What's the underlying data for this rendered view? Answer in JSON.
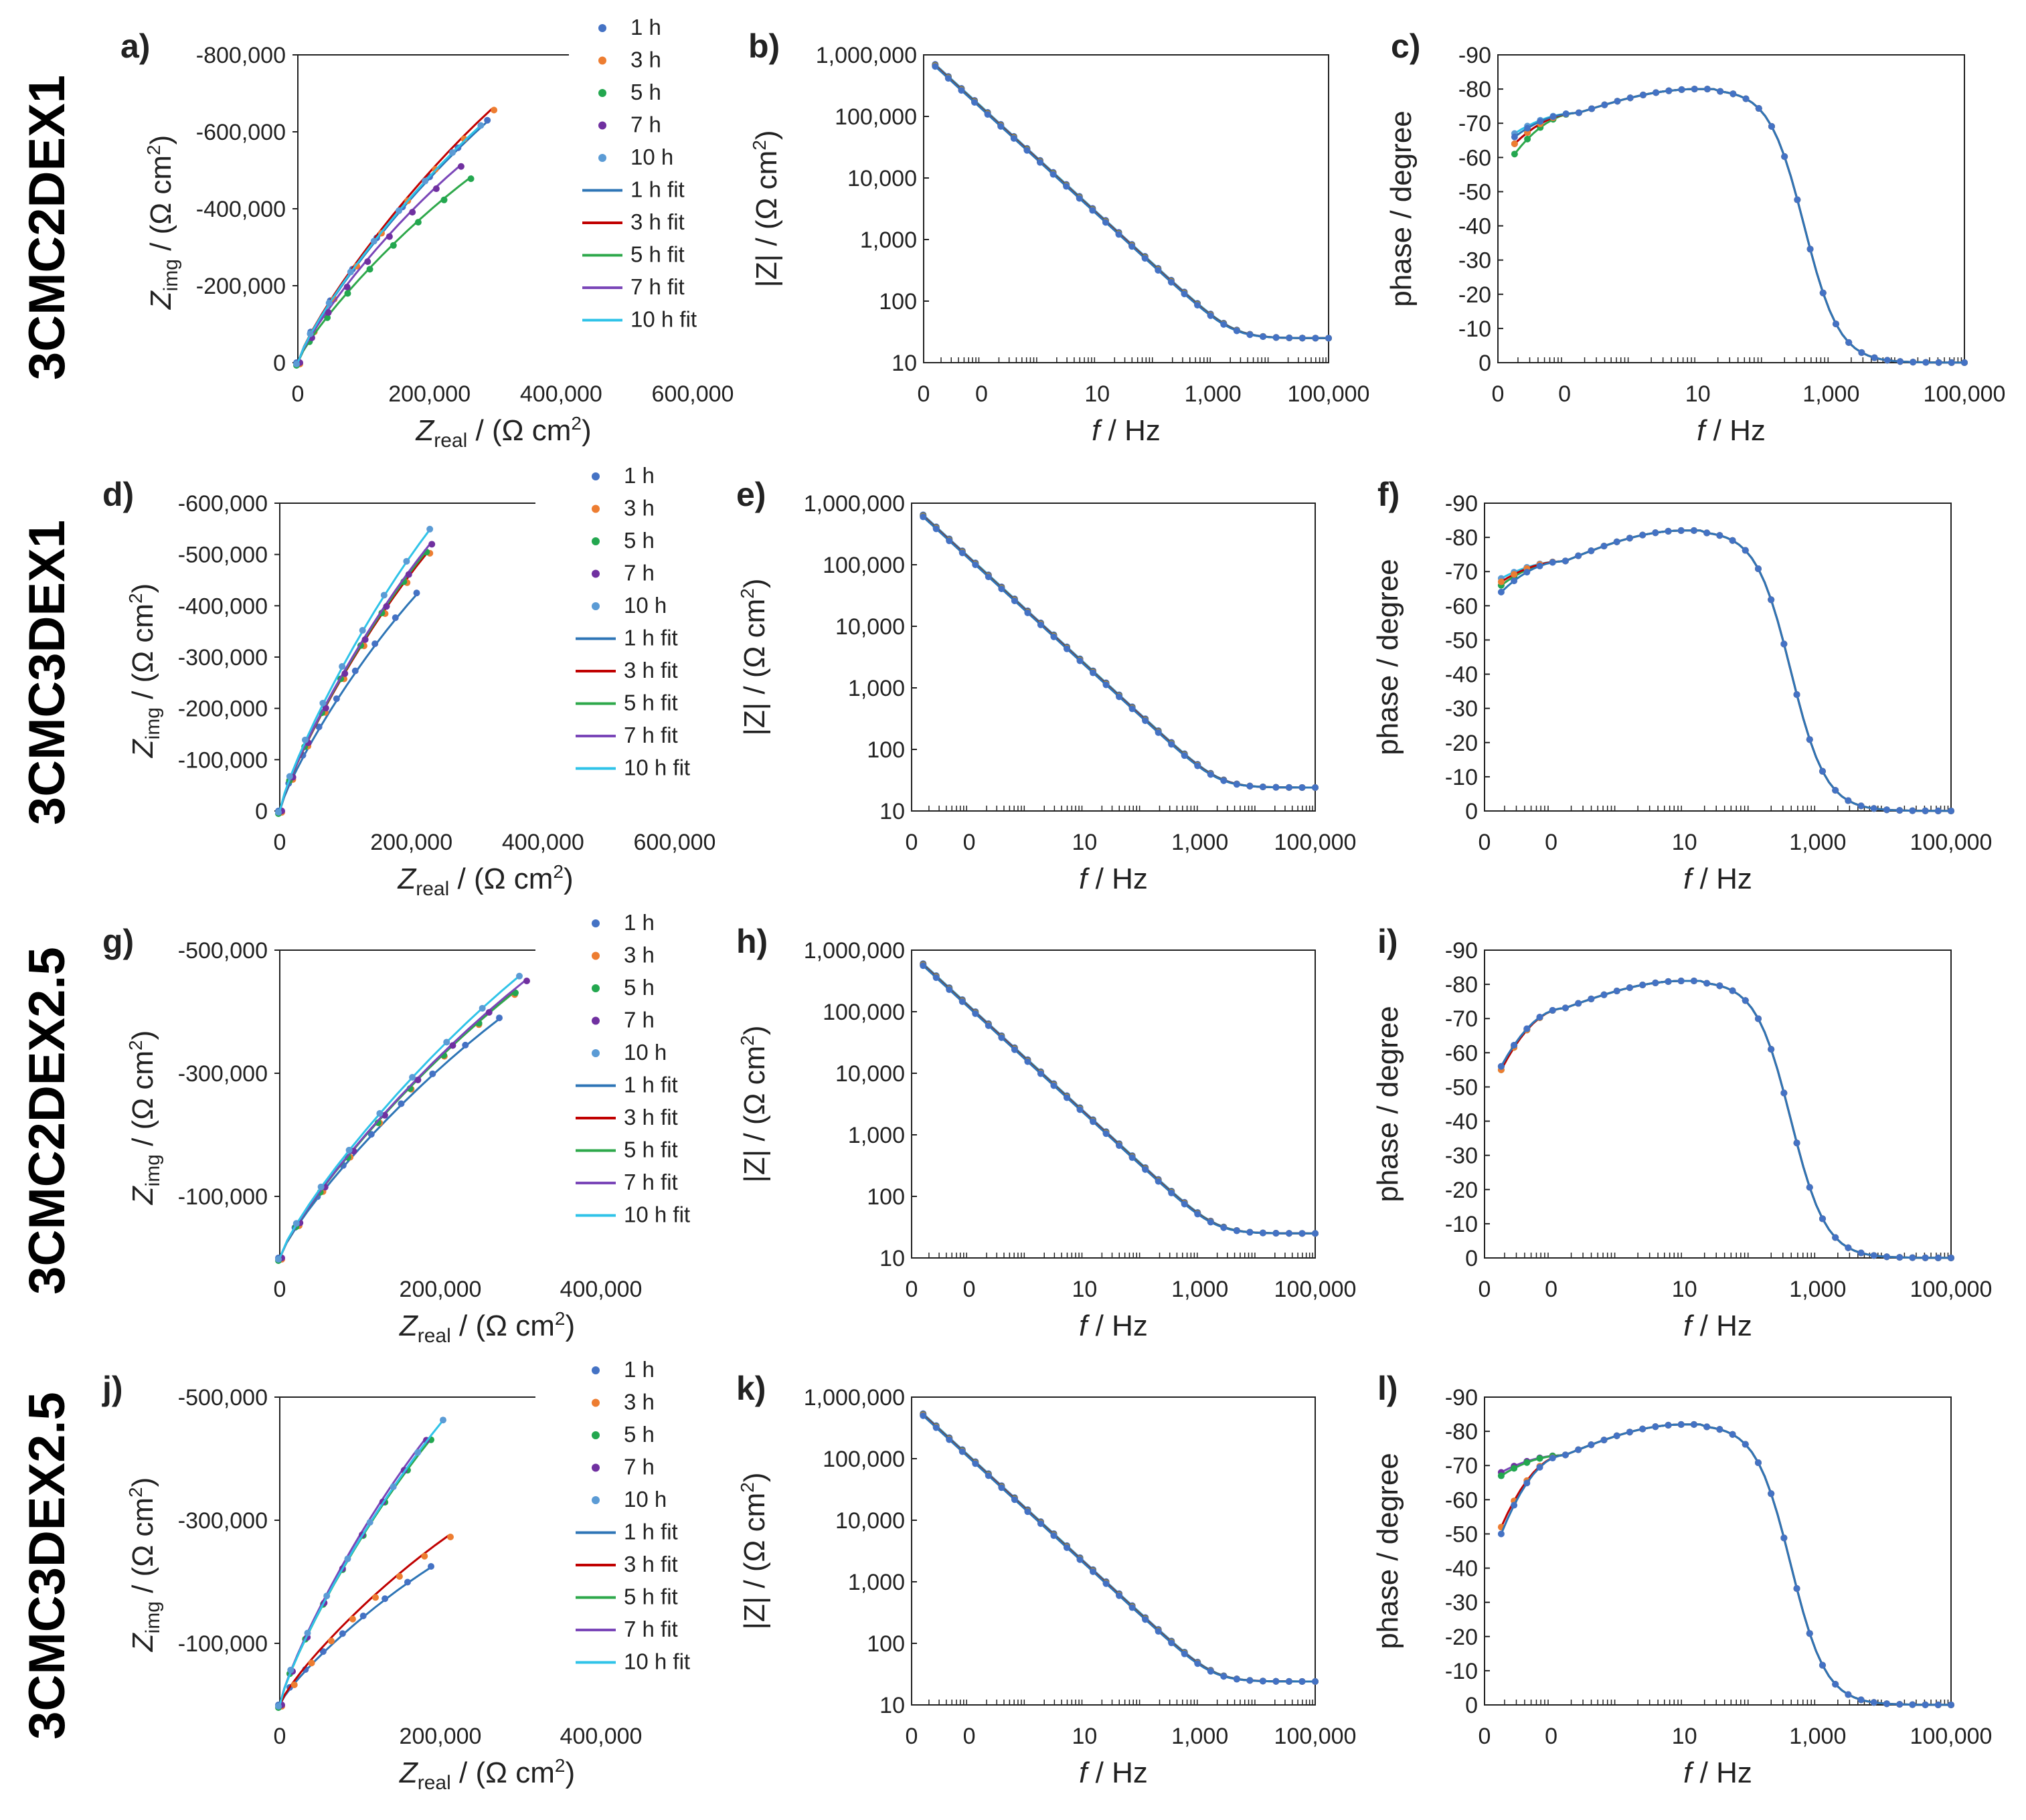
{
  "figure": {
    "row_labels": [
      "3CMC2DEX1",
      "3CMC3DEX1",
      "3CMC2DEX2.5",
      "3CMC3DEX2.5"
    ],
    "legend_items": [
      "1 h",
      "3 h",
      "5 h",
      "7 h",
      "10 h",
      "1 h fit",
      "3 h fit",
      "5 h fit",
      "7 h fit",
      "10 h fit"
    ],
    "colors": {
      "points": [
        "#4472c4",
        "#ed7d31",
        "#23a74f",
        "#7030a0",
        "#5b9bd5"
      ],
      "fits": [
        "#2e75b6",
        "#c00000",
        "#2ea84b",
        "#7a46b8",
        "#2fc3e8"
      ]
    }
  },
  "chart_data": [
    {
      "panel": "a)",
      "type": "scatter",
      "row": 0,
      "kind": "nyquist",
      "xlabel": "Z_real / (Ω cm²)",
      "ylabel": "Z_img / (Ω cm²)",
      "xlim": [
        0,
        600000
      ],
      "ylim": [
        0,
        800000
      ],
      "xticks": [
        "0",
        "200,000",
        "400,000",
        "600,000"
      ],
      "yticks": [
        "0",
        "-200,000",
        "-400,000",
        "-600,000",
        "-800,000"
      ],
      "series": [
        {
          "name": "1 h",
          "xmax": 290000,
          "ymax": 630000
        },
        {
          "name": "3 h",
          "xmax": 295000,
          "ymax": 660000
        },
        {
          "name": "5 h",
          "xmax": 265000,
          "ymax": 485000
        },
        {
          "name": "7 h",
          "xmax": 245000,
          "ymax": 510000
        },
        {
          "name": "10 h",
          "xmax": 280000,
          "ymax": 620000
        }
      ]
    },
    {
      "panel": "b)",
      "type": "scatter",
      "row": 0,
      "kind": "bode_mag",
      "xlabel": "f / Hz",
      "ylabel": "|Z| / (Ω cm²)",
      "ylim": [
        10,
        1000000
      ],
      "xticks": [
        "0",
        "0",
        "10",
        "1,000",
        "100,000"
      ],
      "yticks": [
        "10",
        "100",
        "1,000",
        "10,000",
        "100,000",
        "1,000,000"
      ],
      "low_freq_Z": 650000,
      "high_freq_Z": 25
    },
    {
      "panel": "c)",
      "type": "scatter",
      "row": 0,
      "kind": "bode_phase",
      "xlabel": "f / Hz",
      "ylabel": "phase / degree",
      "ylim": [
        0,
        -90
      ],
      "xticks": [
        "0",
        "0",
        "10",
        "1,000",
        "100,000"
      ],
      "yticks": [
        "0",
        "-10",
        "-20",
        "-30",
        "-40",
        "-50",
        "-60",
        "-70",
        "-80",
        "-90"
      ],
      "phase_start": [
        -66,
        -64,
        -61,
        -64,
        -67
      ],
      "phase_peak": -80
    },
    {
      "panel": "d)",
      "type": "scatter",
      "row": 1,
      "kind": "nyquist",
      "xlabel": "Z_real / (Ω cm²)",
      "ylabel": "Z_img / (Ω cm²)",
      "xlim": [
        0,
        600000
      ],
      "ylim": [
        0,
        600000
      ],
      "xticks": [
        "0",
        "200,000",
        "400,000",
        "600,000"
      ],
      "yticks": [
        "0",
        "-100,000",
        "-200,000",
        "-300,000",
        "-400,000",
        "-500,000",
        "-600,000"
      ],
      "series": [
        {
          "name": "1 h",
          "xmax": 210000,
          "ymax": 425000
        },
        {
          "name": "3 h",
          "xmax": 225000,
          "ymax": 505000
        },
        {
          "name": "5 h",
          "xmax": 225000,
          "ymax": 510000
        },
        {
          "name": "7 h",
          "xmax": 228000,
          "ymax": 520000
        },
        {
          "name": "10 h",
          "xmax": 230000,
          "ymax": 552000
        }
      ]
    },
    {
      "panel": "e)",
      "type": "scatter",
      "row": 1,
      "kind": "bode_mag",
      "xlabel": "f / Hz",
      "ylabel": "|Z| / (Ω cm²)",
      "ylim": [
        10,
        1000000
      ],
      "xticks": [
        "0",
        "0",
        "10",
        "1,000",
        "100,000"
      ],
      "yticks": [
        "10",
        "100",
        "1,000",
        "10,000",
        "100,000",
        "1,000,000"
      ],
      "low_freq_Z": 600000,
      "high_freq_Z": 24
    },
    {
      "panel": "f)",
      "type": "scatter",
      "row": 1,
      "kind": "bode_phase",
      "xlabel": "f / Hz",
      "ylabel": "phase / degree",
      "ylim": [
        0,
        -90
      ],
      "xticks": [
        "0",
        "0",
        "10",
        "1,000",
        "100,000"
      ],
      "yticks": [
        "0",
        "-10",
        "-20",
        "-30",
        "-40",
        "-50",
        "-60",
        "-70",
        "-80",
        "-90"
      ],
      "phase_start": [
        -64,
        -67,
        -66,
        -66,
        -68
      ],
      "phase_peak": -82
    },
    {
      "panel": "g)",
      "type": "scatter",
      "row": 2,
      "kind": "nyquist",
      "xlabel": "Z_real / (Ω cm²)",
      "ylabel": "Z_img / (Ω cm²)",
      "xlim": [
        0,
        500000
      ],
      "ylim": [
        0,
        500000
      ],
      "xticks": [
        "0",
        "200,000",
        "400,000"
      ],
      "yticks": [
        "-100,000",
        "-300,000",
        "-500,000"
      ],
      "series": [
        {
          "name": "1 h",
          "xmax": 275000,
          "ymax": 390000
        },
        {
          "name": "3 h",
          "xmax": 290000,
          "ymax": 430000
        },
        {
          "name": "5 h",
          "xmax": 295000,
          "ymax": 435000
        },
        {
          "name": "7 h",
          "xmax": 305000,
          "ymax": 450000
        },
        {
          "name": "10 h",
          "xmax": 300000,
          "ymax": 460000
        }
      ]
    },
    {
      "panel": "h)",
      "type": "scatter",
      "row": 2,
      "kind": "bode_mag",
      "xlabel": "f / Hz",
      "ylabel": "|Z| / (Ω cm²)",
      "ylim": [
        10,
        1000000
      ],
      "xticks": [
        "0",
        "0",
        "10",
        "1,000",
        "100,000"
      ],
      "yticks": [
        "10",
        "100",
        "1,000",
        "10,000",
        "100,000",
        "1,000,000"
      ],
      "low_freq_Z": 560000,
      "high_freq_Z": 25
    },
    {
      "panel": "i)",
      "type": "scatter",
      "row": 2,
      "kind": "bode_phase",
      "xlabel": "f / Hz",
      "ylabel": "phase / degree",
      "ylim": [
        0,
        -90
      ],
      "xticks": [
        "0",
        "0",
        "10",
        "1,000",
        "100,000"
      ],
      "yticks": [
        "0",
        "-10",
        "-20",
        "-30",
        "-40",
        "-50",
        "-60",
        "-70",
        "-80",
        "-90"
      ],
      "phase_start": [
        -56,
        -55,
        -55,
        -56,
        -56
      ],
      "phase_peak": -81
    },
    {
      "panel": "j)",
      "type": "scatter",
      "row": 3,
      "kind": "nyquist",
      "xlabel": "Z_real / (Ω cm²)",
      "ylabel": "Z_img / (Ω cm²)",
      "xlim": [
        0,
        500000
      ],
      "ylim": [
        0,
        500000
      ],
      "xticks": [
        "0",
        "200,000",
        "400,000"
      ],
      "yticks": [
        "-100,000",
        "-300,000",
        "-500,000"
      ],
      "series": [
        {
          "name": "1 h",
          "xmax": 190000,
          "ymax": 225000
        },
        {
          "name": "3 h",
          "xmax": 210000,
          "ymax": 275000
        },
        {
          "name": "5 h",
          "xmax": 190000,
          "ymax": 435000
        },
        {
          "name": "7 h",
          "xmax": 180000,
          "ymax": 430000
        },
        {
          "name": "10 h",
          "xmax": 205000,
          "ymax": 465000
        }
      ]
    },
    {
      "panel": "k)",
      "type": "scatter",
      "row": 3,
      "kind": "bode_mag",
      "xlabel": "f / Hz",
      "ylabel": "|Z| / (Ω cm²)",
      "ylim": [
        10,
        1000000
      ],
      "xticks": [
        "0",
        "0",
        "10",
        "1,000",
        "100,000"
      ],
      "yticks": [
        "10",
        "100",
        "1,000",
        "10,000",
        "100,000",
        "1,000,000"
      ],
      "low_freq_Z": 500000,
      "high_freq_Z": 24
    },
    {
      "panel": "l)",
      "type": "scatter",
      "row": 3,
      "kind": "bode_phase",
      "xlabel": "f / Hz",
      "ylabel": "phase / degree",
      "ylim": [
        0,
        -90
      ],
      "xticks": [
        "0",
        "0",
        "10",
        "1,000",
        "100,000"
      ],
      "yticks": [
        "0",
        "-10",
        "-20",
        "-30",
        "-40",
        "-50",
        "-60",
        "-70",
        "-80",
        "-90"
      ],
      "phase_start": [
        -50,
        -52,
        -67,
        -68,
        -67
      ],
      "phase_peak": -82
    }
  ]
}
